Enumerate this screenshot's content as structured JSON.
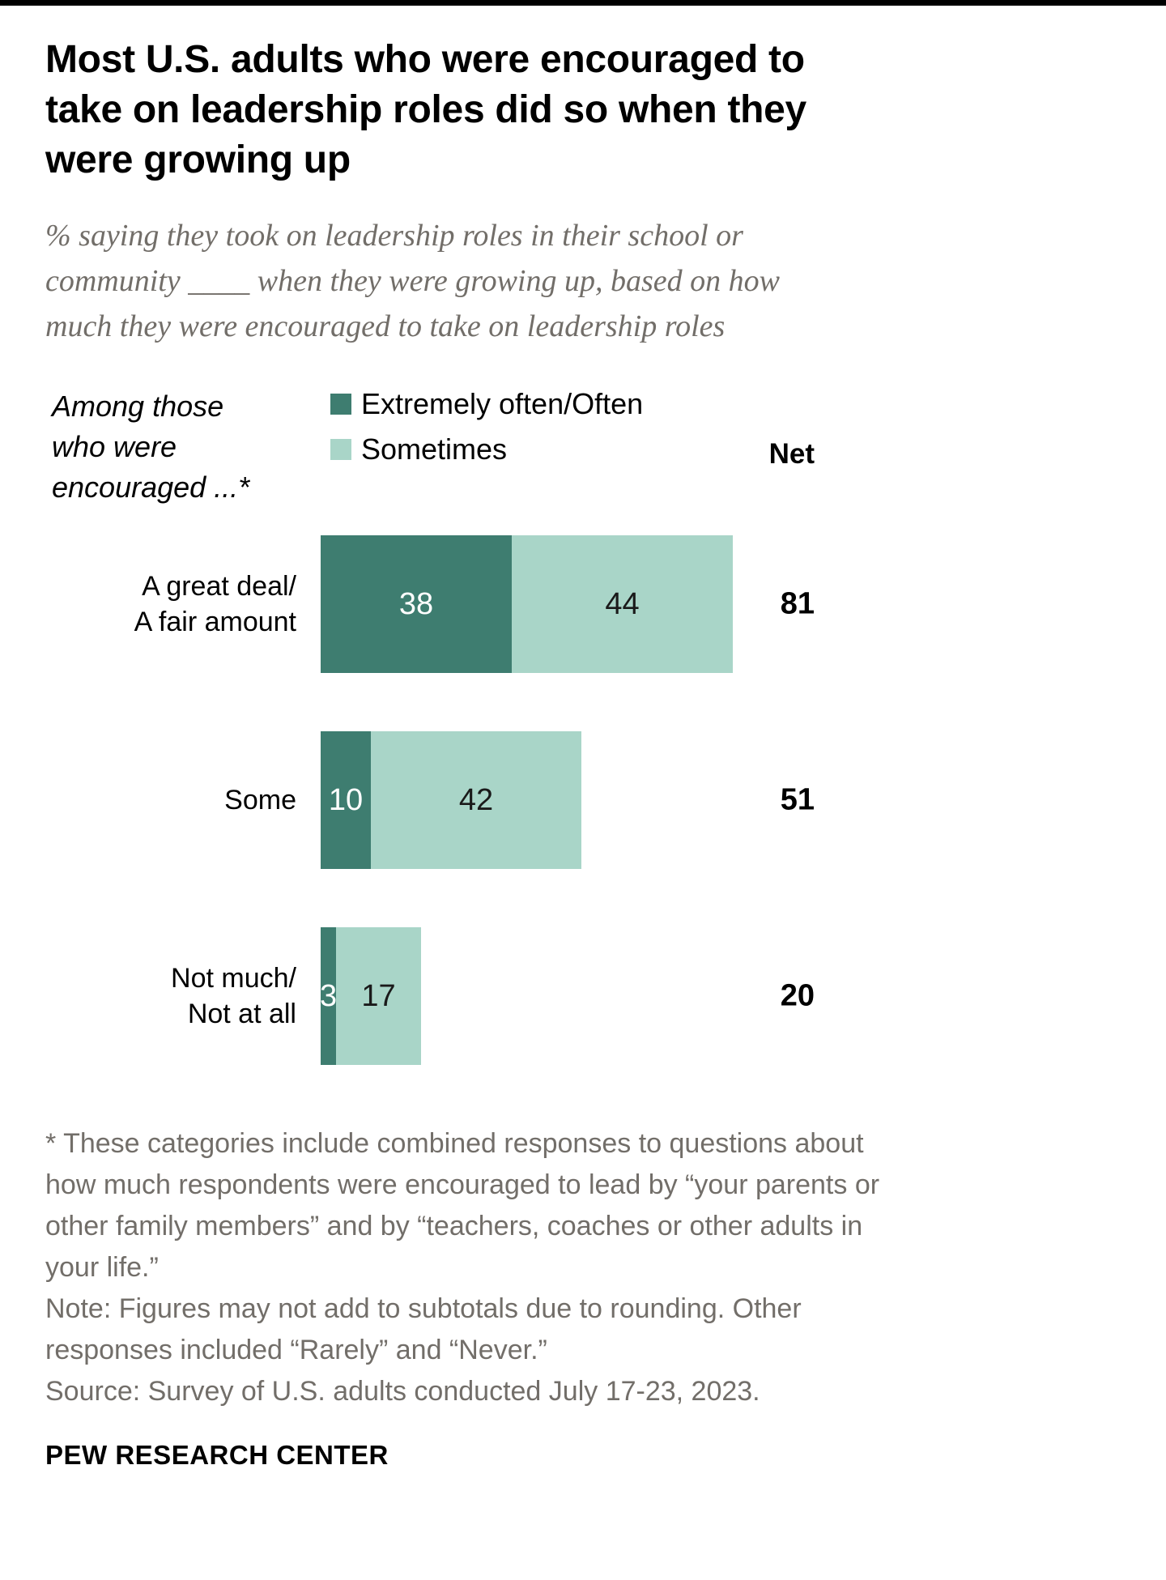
{
  "chart_data": {
    "type": "bar",
    "orientation": "horizontal",
    "stacked": true,
    "grid": false,
    "legend_position": "top",
    "title": "Most U.S. adults who were encouraged to take on leadership roles did so when they were growing up",
    "subtitle": "% saying they took on leadership roles in their school or community ____ when they were growing up, based on how much they were encouraged to take on leadership roles",
    "group_label_lines": [
      "Among those",
      "who were",
      "encouraged ...*"
    ],
    "categories": [
      "A great deal/A fair amount",
      "Some",
      "Not much/Not at all"
    ],
    "category_lines": [
      [
        "A great deal/",
        "A fair amount"
      ],
      [
        "Some"
      ],
      [
        "Not much/",
        "Not at all"
      ]
    ],
    "series": [
      {
        "name": "Extremely often/Often",
        "color": "#3e7d70",
        "values": [
          38,
          10,
          3
        ]
      },
      {
        "name": "Sometimes",
        "color": "#a9d5c8",
        "values": [
          44,
          42,
          17
        ]
      }
    ],
    "net_label": "Net",
    "net_values": [
      81,
      51,
      20
    ],
    "xlim": [
      0,
      100
    ],
    "unit": "%"
  },
  "footnotes": {
    "asterisk": "* These categories include combined responses to questions about how much respondents were encouraged to lead by “your parents or other family members” and by “teachers, coaches or other adults in your life.”",
    "note": "Note: Figures may not add to subtotals due to rounding. Other responses included “Rarely” and “Never.”",
    "source": "Source: Survey of U.S. adults conducted July 17-23, 2023."
  },
  "footer": "PEW RESEARCH CENTER"
}
